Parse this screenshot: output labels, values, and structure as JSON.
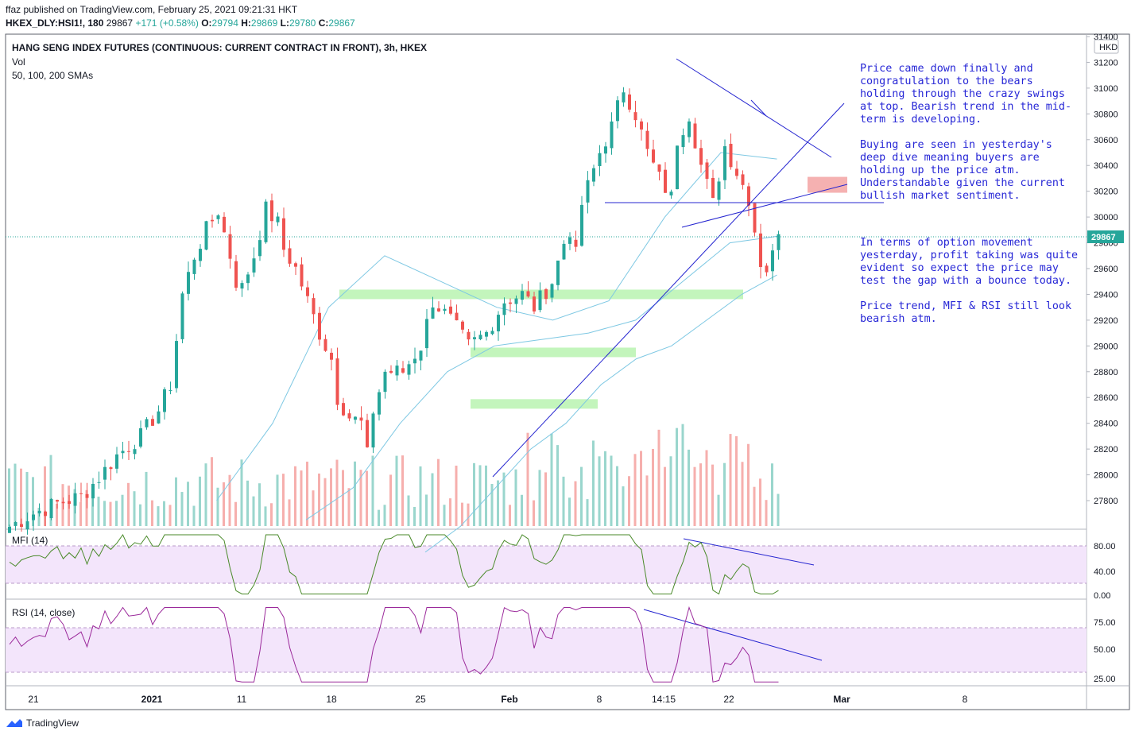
{
  "header": {
    "line1": "ffaz published on TradingView.com, February 25, 2021 09:21:31 HKT",
    "symbol": "HKEX_DLY:HSI1!, 180",
    "last": "29867",
    "change": "+171 (+0.58%)",
    "o_label": "O:",
    "o_val": "29794",
    "h_label": "H:",
    "h_val": "29869",
    "l_label": "L:",
    "l_val": "29780",
    "c_label": "C:",
    "c_val": "29867"
  },
  "legend": {
    "title": "HANG SENG INDEX FUTURES (CONTINUOUS: CURRENT CONTRACT IN FRONT), 3h, HKEX",
    "vol": "Vol",
    "sma": "50, 100, 200 SMAs"
  },
  "currency": "HKD",
  "annotations": [
    "Price came down finally and congratulation to the bears holding through the crazy swings at top. Bearish trend in the mid-term is developing.",
    "Buying are seen in yesterday's deep dive meaning buyers are holding up the price atm. Understandable given the current bullish market sentiment.",
    "In terms of option movement yesterday, profit taking was quite evident so expect the price may test the gap with a bounce today.",
    "Price trend, MFI & RSI still look bearish atm."
  ],
  "mfi_label": "MFI (14)",
  "rsi_label": "RSI (14, close)",
  "footer": "TradingView",
  "colors": {
    "up": "#26a69a",
    "down": "#ef5350",
    "sma": "#7ec8e3",
    "trend": "#2424d0",
    "zone": "#b9f3b0",
    "gap": "#f4a9a9",
    "mfi": "#4a8a2a",
    "rsi": "#9b2a9b",
    "band": "#f3e5fb"
  },
  "chart_data": {
    "type": "candlestick",
    "price_axis": {
      "ticks": [
        27800,
        28000,
        28200,
        28400,
        28600,
        28800,
        29000,
        29200,
        29400,
        29600,
        29800,
        30000,
        30200,
        30400,
        30600,
        30800,
        31000,
        31200,
        31400
      ],
      "last_price": 29867
    },
    "x_ticks": [
      "21",
      "2021",
      "11",
      "18",
      "25",
      "Feb",
      "8",
      "14:15",
      "22",
      "Mar",
      "8"
    ],
    "price_path": [
      [
        0,
        27600
      ],
      [
        4,
        27700
      ],
      [
        8,
        27780
      ],
      [
        12,
        27830
      ],
      [
        15,
        27980
      ],
      [
        18,
        28150
      ],
      [
        22,
        28300
      ],
      [
        25,
        28500
      ],
      [
        27,
        28700
      ],
      [
        28,
        29050
      ],
      [
        29,
        29400
      ],
      [
        31,
        29700
      ],
      [
        33,
        29900
      ],
      [
        35,
        30050
      ],
      [
        37,
        29700
      ],
      [
        38,
        29500
      ],
      [
        39,
        29450
      ],
      [
        41,
        29700
      ],
      [
        43,
        30060
      ],
      [
        45,
        29950
      ],
      [
        46,
        29750
      ],
      [
        48,
        29600
      ],
      [
        50,
        29350
      ],
      [
        52,
        29100
      ],
      [
        54,
        28900
      ],
      [
        55,
        28600
      ],
      [
        57,
        28450
      ],
      [
        59,
        28400
      ],
      [
        60,
        28150
      ],
      [
        61,
        28500
      ],
      [
        63,
        28800
      ],
      [
        66,
        28800
      ],
      [
        69,
        29000
      ],
      [
        71,
        29350
      ],
      [
        74,
        29200
      ],
      [
        77,
        29000
      ],
      [
        80,
        29100
      ],
      [
        83,
        29350
      ],
      [
        86,
        29400
      ],
      [
        88,
        29300
      ],
      [
        91,
        29500
      ],
      [
        93,
        29800
      ],
      [
        94,
        29900
      ],
      [
        95,
        29700
      ],
      [
        96,
        30100
      ],
      [
        99,
        30500
      ],
      [
        101,
        30700
      ],
      [
        103,
        31000
      ],
      [
        105,
        30800
      ],
      [
        107,
        30500
      ],
      [
        109,
        30300
      ],
      [
        111,
        30150
      ],
      [
        112,
        30600
      ],
      [
        114,
        30800
      ],
      [
        116,
        30400
      ],
      [
        118,
        30100
      ],
      [
        120,
        30550
      ],
      [
        122,
        30350
      ],
      [
        124,
        30150
      ],
      [
        125,
        29900
      ],
      [
        126,
        29650
      ],
      [
        127,
        29600
      ],
      [
        128,
        29700
      ],
      [
        129,
        29867
      ]
    ],
    "sma_levels": [
      {
        "name": "50",
        "values": [
          27800,
          28400,
          29300,
          29700,
          29500,
          29300,
          29200,
          29350,
          30000,
          30500,
          30450
        ]
      },
      {
        "name": "100",
        "values": [
          27650,
          27900,
          28400,
          28800,
          29000,
          29050,
          29100,
          29200,
          29500,
          29800,
          29850
        ]
      },
      {
        "name": "200",
        "values": [
          27400,
          27600,
          27900,
          28200,
          28400,
          28700,
          28900,
          29000,
          29200,
          29400,
          29550
        ]
      }
    ],
    "support_zones": [
      29400,
      28950,
      28550
    ],
    "gap_zone": [
      30150,
      30250
    ],
    "mfi": {
      "ticks": [
        0,
        40,
        80
      ],
      "levels": [
        20,
        80
      ]
    },
    "rsi": {
      "ticks": [
        25,
        50,
        75
      ],
      "levels": [
        30,
        70
      ]
    }
  }
}
